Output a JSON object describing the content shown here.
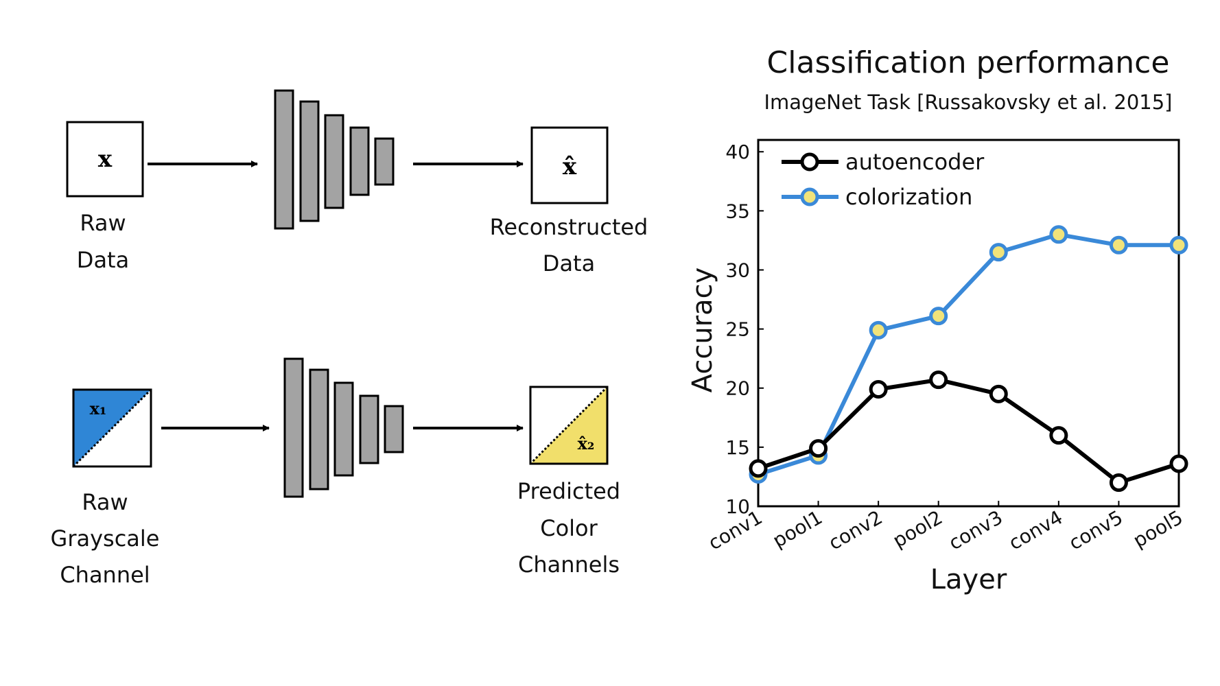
{
  "diagram": {
    "top": {
      "input_symbol": "x",
      "input_label": [
        "Raw",
        "Data"
      ],
      "output_symbol": "x̂",
      "output_label": [
        "Reconstructed",
        "Data"
      ]
    },
    "bottom": {
      "input_symbol": "x₁",
      "input_label": [
        "Raw",
        "Grayscale",
        "Channel"
      ],
      "output_symbol": "x̂₂",
      "output_label": [
        "Predicted",
        "Color",
        "Channels"
      ]
    },
    "colors": {
      "layer_fill": "#a3a3a3",
      "grayscale_fill": "#2f86d6",
      "color_fill": "#f1df6b"
    }
  },
  "chart_data": {
    "type": "line",
    "title": "Classification performance",
    "subtitle": "ImageNet Task [Russakovsky et al. 2015]",
    "xlabel": "Layer",
    "ylabel": "Accuracy",
    "categories": [
      "conv1",
      "pool1",
      "conv2",
      "pool2",
      "conv3",
      "conv4",
      "conv5",
      "pool5"
    ],
    "ylim": [
      10,
      41
    ],
    "yticks": [
      "10",
      "15",
      "20",
      "25",
      "30",
      "35",
      "40"
    ],
    "legend_position": "top-left",
    "grid": false,
    "series": [
      {
        "name": "autoencoder",
        "values": [
          13.2,
          14.9,
          19.9,
          20.7,
          19.5,
          16.0,
          12.0,
          13.6
        ],
        "line_color": "#000000",
        "marker_fill": "#ffffff"
      },
      {
        "name": "colorization",
        "values": [
          12.7,
          14.3,
          24.9,
          26.1,
          31.5,
          33.0,
          32.1,
          32.1
        ],
        "line_color": "#3a89d8",
        "marker_fill": "#f1e37a"
      }
    ]
  }
}
